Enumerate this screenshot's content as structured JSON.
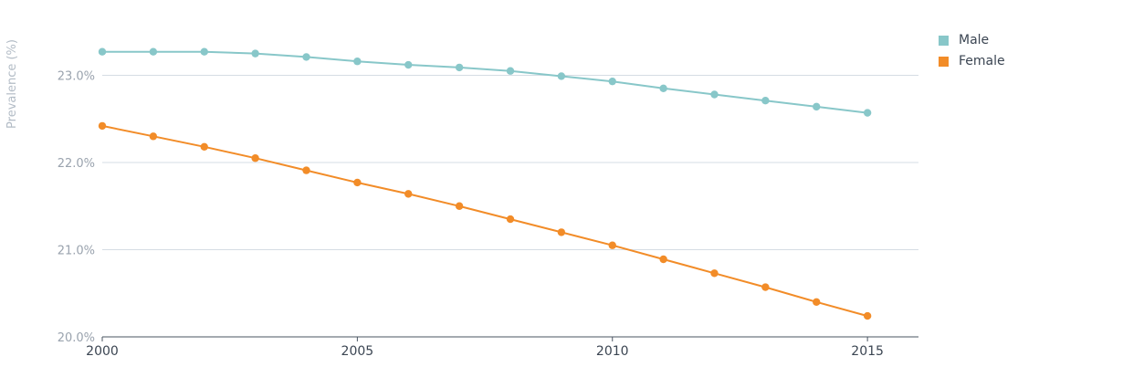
{
  "chart_data": {
    "type": "line",
    "ylabel": "Prevalence (%)",
    "x": [
      2000,
      2001,
      2002,
      2003,
      2004,
      2005,
      2006,
      2007,
      2008,
      2009,
      2010,
      2011,
      2012,
      2013,
      2014,
      2015
    ],
    "x_ticks": [
      "2000",
      "2005",
      "2010",
      "2015"
    ],
    "y_ticks": [
      "20.0%",
      "21.0%",
      "22.0%",
      "23.0%"
    ],
    "ylim": [
      20.0,
      23.3
    ],
    "xlim": [
      2000,
      2016
    ],
    "grid": true,
    "legend_position": "top-right",
    "series": [
      {
        "name": "Male",
        "color": "#88c7c9",
        "values": [
          23.27,
          23.27,
          23.27,
          23.25,
          23.21,
          23.16,
          23.12,
          23.09,
          23.05,
          22.99,
          22.93,
          22.85,
          22.78,
          22.71,
          22.64,
          22.57
        ]
      },
      {
        "name": "Female",
        "color": "#f28c28",
        "values": [
          22.42,
          22.3,
          22.18,
          22.05,
          21.91,
          21.77,
          21.64,
          21.5,
          21.35,
          21.2,
          21.05,
          20.89,
          20.73,
          20.57,
          20.4,
          20.24
        ]
      }
    ]
  }
}
